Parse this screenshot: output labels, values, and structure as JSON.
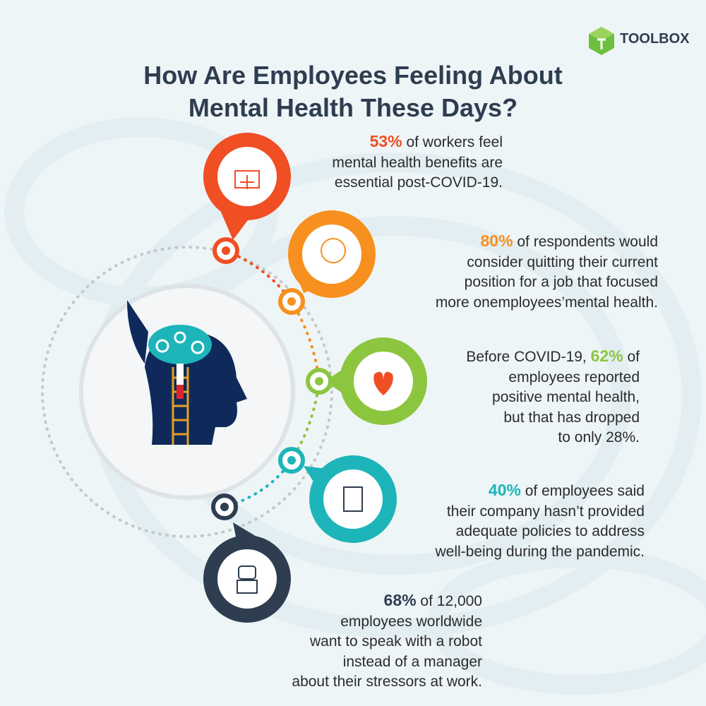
{
  "brand": "TOOLBOX",
  "header": {
    "title_lines": [
      "How Are Employees Feeling About",
      "Mental Health These Days?"
    ]
  },
  "items": [
    {
      "color": "#f04e23",
      "lines": [
        [
          {
            "text": "53%",
            "bold": true
          },
          {
            "text": " of workers feel",
            "bold": false
          }
        ],
        [
          {
            "text": "mental health benefits are",
            "bold": false
          }
        ],
        [
          {
            "text": "essential post-COVID-19.",
            "bold": false
          }
        ]
      ]
    },
    {
      "color": "#f7901e",
      "lines": [
        [
          {
            "text": "80%",
            "bold": true
          },
          {
            "text": " of respondents would",
            "bold": false
          }
        ],
        [
          {
            "text": "consider quitting their current",
            "bold": false
          }
        ],
        [
          {
            "text": "position for a job that focused",
            "bold": false
          }
        ],
        [
          {
            "text": "more onemployees’mental health.",
            "bold": false
          }
        ]
      ]
    },
    {
      "color": "#8cc63f",
      "lines": [
        [
          {
            "text": "Before COVID-19, ",
            "bold": false
          },
          {
            "text": "62%",
            "bold": true
          },
          {
            "text": " of",
            "bold": false
          }
        ],
        [
          {
            "text": "employees reported",
            "bold": false
          }
        ],
        [
          {
            "text": "positive mental health,",
            "bold": false
          }
        ],
        [
          {
            "text": "but that has dropped",
            "bold": false
          }
        ],
        [
          {
            "text": "to only 28%.",
            "bold": false
          }
        ]
      ]
    },
    {
      "color": "#1db5b9",
      "lines": [
        [
          {
            "text": "40%",
            "bold": true
          },
          {
            "text": " of employees said",
            "bold": false
          }
        ],
        [
          {
            "text": "their company hasn’t provided",
            "bold": false
          }
        ],
        [
          {
            "text": "adequate policies to address",
            "bold": false
          }
        ],
        [
          {
            "text": "well-being during the pandemic.",
            "bold": false
          }
        ]
      ]
    },
    {
      "color": "#2e3d50",
      "lines": [
        [
          {
            "text": "68%",
            "bold": true
          },
          {
            "text": " of 12,000",
            "bold": false
          }
        ],
        [
          {
            "text": "employees worldwide",
            "bold": false
          }
        ],
        [
          {
            "text": "want to speak with a robot",
            "bold": false
          }
        ],
        [
          {
            "text": "instead of a manager",
            "bold": false
          }
        ],
        [
          {
            "text": "about their stressors at work.",
            "bold": false
          }
        ]
      ]
    }
  ]
}
